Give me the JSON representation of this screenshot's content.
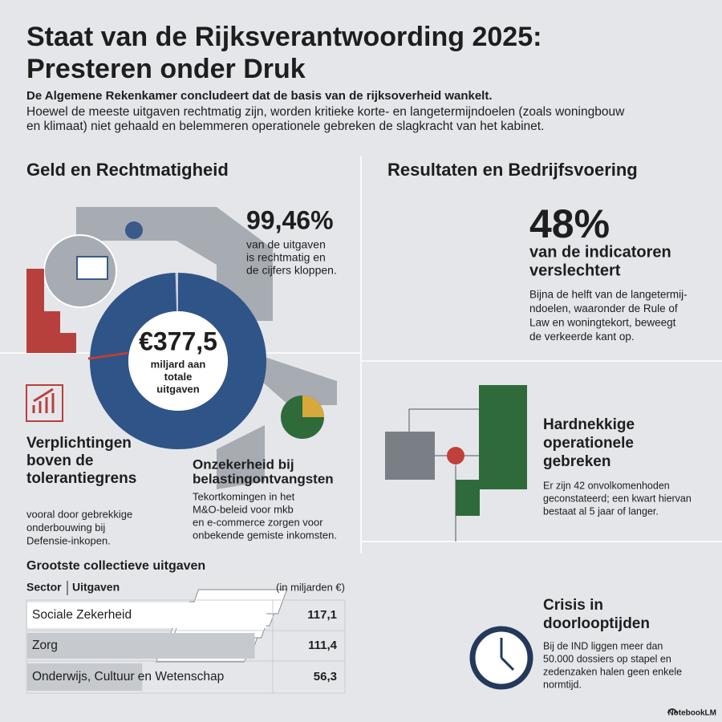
{
  "header": {
    "title": [
      "Staat van de Rijksverantwoording 2025:",
      "Presteren onder Druk"
    ],
    "lead": "De Algemene Rekenkamer concludeert dat de basis van de rijksoverheid wankelt.",
    "intro": [
      "Hoewel de meeste uitgaven rechtmatig zijn, worden kritieke korte- en langetermijndoelen (zoals woningbouw",
      "en klimaat) niet gehaald en belemmeren operationele gebreken de slagkracht van het kabinet."
    ]
  },
  "left": {
    "heading": "Geld en Rechtmatigheid",
    "lawful": {
      "value": 99.46,
      "label": "99,46%"
    },
    "lawful_text": [
      "van de uitgaven",
      "is rechtmatig en",
      "de cijfers kloppen."
    ],
    "total": "€377,5",
    "total_text": [
      "miljard aan",
      "totale",
      "uitgaven"
    ],
    "obligations": {
      "title": [
        "Verplichtingen",
        "boven de",
        "tolerantiegrens"
      ],
      "text": [
        "vooral door gebrekkige",
        "onderbouwing bij",
        "Defensie-inkopen."
      ]
    },
    "uncertainty": {
      "title": [
        "Onzekerheid bij",
        "belastingontvangsten"
      ],
      "text": [
        "Tekortkomingen in het",
        "M&O-beleid voor mkb",
        "en e-commerce zorgen voor",
        "onbekende gemiste inkomsten."
      ]
    }
  },
  "table": {
    "title": "Grootste collectieve uitgaven",
    "columns": [
      "Sector",
      "Uitgaven",
      "(in miljarden €)"
    ],
    "rows": [
      {
        "sector": "Sociale Zekerheid",
        "amount": {
          "value": 117.1,
          "label": "117,1"
        }
      },
      {
        "sector": "Zorg",
        "amount": {
          "value": 111.4,
          "label": "111,4"
        }
      },
      {
        "sector": "Onderwijs, Cultuur en Wetenschap",
        "amount": {
          "value": 56.3,
          "label": "56,3"
        }
      }
    ]
  },
  "right": {
    "heading": "Resultaten en Bedrijfsvoering",
    "indicators": "48%",
    "indicators_title": [
      "van de indicatoren",
      "verslechtert"
    ],
    "indicators_text": [
      "Bijna de helft van de langetermij-",
      "ndoelen, waaronder de Rule of",
      "Law en woningtekort, beweegt",
      "de verkeerde kant op."
    ],
    "operations": {
      "title": [
        "Hardnekkige",
        "operationele",
        "gebreken"
      ],
      "text": [
        "Er zijn 42 onvolkomenhoden",
        "geconstateerd; een kwart hiervan",
        "bestaat al 5 jaar of langer."
      ]
    },
    "crisis": {
      "title": [
        "Crisis in",
        "doorlooptijden"
      ],
      "text": [
        "Bij de IND liggen meer dan",
        "50.000 dossiers op stapel en",
        "zedenzaken halen geen enkele",
        "normtijd."
      ]
    }
  },
  "footer": "NotebookLM"
}
